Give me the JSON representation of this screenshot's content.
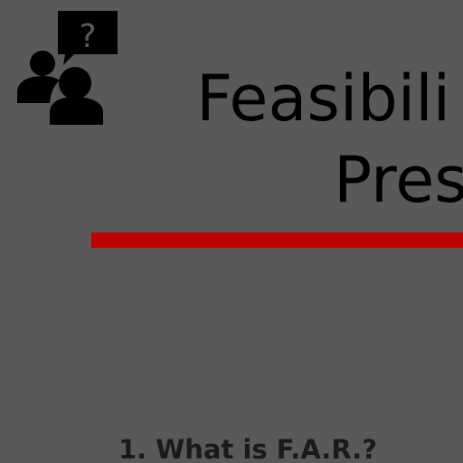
{
  "slide": {
    "background": "#595959",
    "icon": "people-question-icon",
    "title_line_1": "Feasibili",
    "title_line_2": "Pres",
    "accent_color": "#c00000",
    "agenda_item_1": "1. What is F.A.R.?"
  }
}
